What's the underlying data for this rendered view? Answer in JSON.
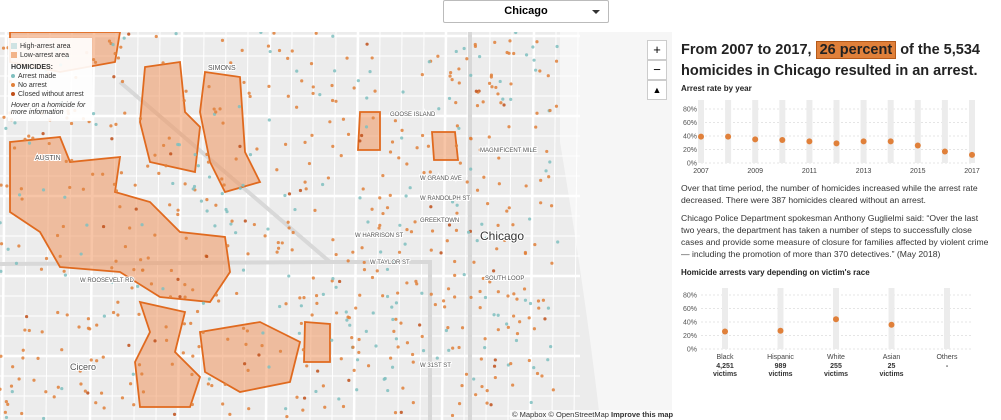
{
  "dropdown": "Chicago",
  "zoom": {
    "in": "+",
    "out": "−"
  },
  "legend": {
    "areas": [
      "High-arrest area",
      "Low-arrest area"
    ],
    "heading": "HOMICIDES:",
    "items": [
      "Arrest made",
      "No arrest",
      "Closed without arrest"
    ],
    "hint": "Hover on a homicide for more information"
  },
  "map_labels": [
    "Chicago",
    "Cicero",
    "AUSTIN",
    "SIMONS",
    "GOOSE ISLAND",
    "MAGNIFICENT MILE",
    "W GRAND AVE",
    "W RANDOLPH ST",
    "GREEKTOWN",
    "W HARRISON ST",
    "W TAYLOR ST",
    "SOUTH LOOP",
    "W ROOSEVELT RD",
    "W 31ST ST"
  ],
  "attribution": {
    "text": "© Mapbox © OpenStreetMap",
    "link": "Improve this map"
  },
  "headline": {
    "before": "From 2007 to 2017,",
    "highlight": "26 percent",
    "after": "of the 5,534 homicides in Chicago resulted in an arrest."
  },
  "paragraphs": [
    "Over that time period, the number of homicides increased while the arrest rate decreased. There were 387 homicides cleared without an arrest.",
    "Chicago Police Department spokesman Anthony Guglielmi said: “Over the last two years, the department has taken a number of steps to successfully close cases and provide some measure of closure for families affected by violent crime — including the promotion of more than 370 detectives.” (May 2018)"
  ],
  "chart_data": [
    {
      "type": "dot",
      "title": "Arrest rate by year",
      "color": "#e0803a",
      "categories": [
        "2007",
        null,
        "2009",
        null,
        "2011",
        null,
        "2013",
        null,
        "2015",
        null,
        "2017"
      ],
      "values": [
        39,
        39,
        35,
        34,
        32,
        29,
        32,
        32,
        26,
        17,
        12
      ],
      "ylim": [
        0,
        80
      ],
      "yticks": [
        {
          "value": 0,
          "label": "0%"
        },
        {
          "value": 20,
          "label": "20%"
        },
        {
          "value": 40,
          "label": "40%"
        },
        {
          "value": 60,
          "label": "60%"
        },
        {
          "value": 80,
          "label": "80%"
        }
      ],
      "grid": true
    },
    {
      "type": "dot",
      "title": "Homicide arrests vary depending on victim's race",
      "color": "#e0803a",
      "categories": [
        "Black",
        "Hispanic",
        "White",
        "Asian",
        "Others"
      ],
      "counts": [
        "4,251",
        "989",
        "255",
        "25",
        "-"
      ],
      "count_unit": "victims",
      "values": [
        26,
        27,
        44,
        36,
        null
      ],
      "ylim": [
        0,
        80
      ],
      "yticks": [
        {
          "value": 0,
          "label": "0%"
        },
        {
          "value": 20,
          "label": "20%"
        },
        {
          "value": 40,
          "label": "40%"
        },
        {
          "value": 60,
          "label": "60%"
        },
        {
          "value": 80,
          "label": "80%"
        }
      ],
      "grid": true
    }
  ]
}
